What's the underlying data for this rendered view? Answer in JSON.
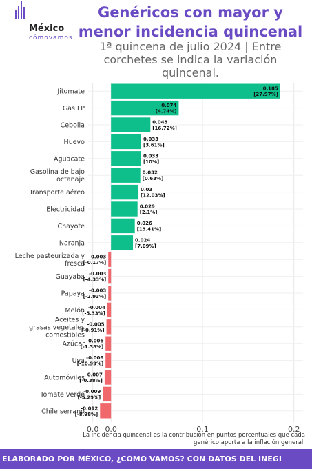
{
  "header": {
    "title_line1": "Genéricos con mayor y",
    "title_line2": "menor incidencia quincenal",
    "subtitle_line1": "1ª quincena de julio 2024 | Entre",
    "subtitle_line2": "corchetes se indica la variación",
    "subtitle_line3": "quincenal."
  },
  "logo": {
    "word": "México",
    "sub": "cómovamos"
  },
  "colors": {
    "positive": "#0fbf8b",
    "negative": "#f0676c",
    "accent": "#6a4bc4"
  },
  "chart_data": {
    "type": "bar",
    "orientation": "horizontal",
    "grid": true,
    "xlim": [
      -0.025,
      0.21
    ],
    "x_ticks": [
      -0.02,
      0.0,
      0.1,
      0.2
    ],
    "x_tick_labels": [
      "0.0",
      "0.0",
      "0.1",
      "0.2"
    ],
    "categories": [
      "Jitomate",
      "Gas LP",
      "Cebolla",
      "Huevo",
      "Aguacate",
      "Gasolina de bajo|octanaje",
      "Transporte aéreo",
      "Electricidad",
      "Chayote",
      "Naranja",
      "Leche pasteurizada y|fresca",
      "Guayaba",
      "Papaya",
      "Melón",
      "Aceites y|grasas vegetales|comestibles",
      "Azúcar",
      "Uva",
      "Automóviles",
      "Tomate verde",
      "Chile serrano"
    ],
    "values": [
      0.185,
      0.074,
      0.043,
      0.033,
      0.033,
      0.032,
      0.03,
      0.029,
      0.026,
      0.024,
      -0.003,
      -0.003,
      -0.003,
      -0.004,
      -0.005,
      -0.006,
      -0.006,
      -0.007,
      -0.009,
      -0.012
    ],
    "value_labels": [
      "0.185",
      "0.074",
      "0.043",
      "0.033",
      "0.033",
      "0.032",
      "0.03",
      "0.029",
      "0.026",
      "0.024",
      "-0.003",
      "-0.003",
      "-0.003",
      "-0.004",
      "-0.005",
      "-0.006",
      "-0.006",
      "-0.007",
      "-0.009",
      "-0.012"
    ],
    "variation_labels": [
      "[27.97%]",
      "[4.74%]",
      "[16.72%]",
      "[3.61%]",
      "[10%]",
      "[0.63%]",
      "[12.03%]",
      "[2.1%]",
      "[13.41%]",
      "[7.09%]",
      "[-0.17%]",
      "[-4.33%]",
      "[-2.93%]",
      "[-5.33%]",
      "[-0.91%]",
      "[-1.38%]",
      "[-10.99%]",
      "[-0.38%]",
      "[-5.29%]",
      "[-8.98%]"
    ]
  },
  "caption": "La incidencia quincenal es la contribución en puntos porcentuales que cada genérico aporta a la inflación general.",
  "footer": "ELABORADO POR MÉXICO, ¿CÓMO VAMOS? CON DATOS DEL INEGI"
}
